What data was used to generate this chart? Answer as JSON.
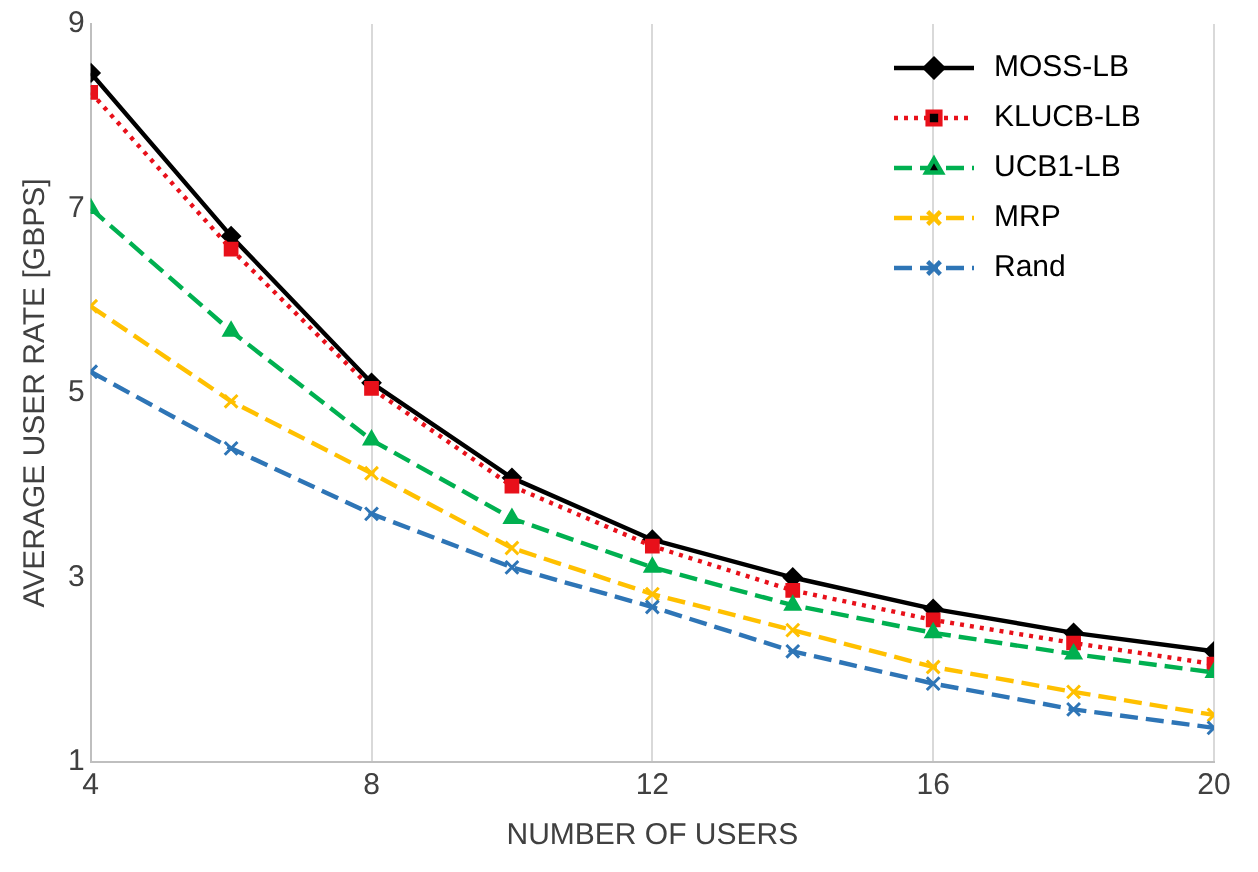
{
  "chart_data": {
    "type": "line",
    "xlabel": "NUMBER OF USERS",
    "ylabel": "AVERAGE USER RATE [GBPS]",
    "x": [
      4,
      6,
      8,
      10,
      12,
      14,
      16,
      18,
      20
    ],
    "xlim": [
      4,
      20
    ],
    "xticks": [
      4,
      8,
      12,
      16,
      20
    ],
    "ylim": [
      1,
      9
    ],
    "yticks": [
      1,
      3,
      5,
      7,
      9
    ],
    "grid": "x",
    "legend": "top right",
    "series": [
      {
        "name": "MOSS-LB",
        "color": "#000000",
        "marker": "diamond",
        "line_style": "solid",
        "values": [
          8.47,
          6.7,
          5.11,
          4.08,
          3.41,
          3.0,
          2.66,
          2.4,
          2.2
        ]
      },
      {
        "name": "KLUCB-LB",
        "color": "#e8101a",
        "marker": "square",
        "line_style": "dotted",
        "values": [
          8.26,
          6.56,
          5.05,
          3.99,
          3.34,
          2.86,
          2.54,
          2.29,
          2.06
        ]
      },
      {
        "name": "UCB1-LB",
        "color": "#00b050",
        "marker": "triangle",
        "line_style": "dashed",
        "values": [
          7.0,
          5.67,
          4.49,
          3.64,
          3.11,
          2.7,
          2.4,
          2.17,
          1.97
        ]
      },
      {
        "name": "MRP",
        "color": "#ffc000",
        "marker": "cross",
        "line_style": "dashed",
        "values": [
          5.94,
          4.91,
          4.13,
          3.32,
          2.82,
          2.43,
          2.03,
          1.76,
          1.51
        ]
      },
      {
        "name": "Rand",
        "color": "#2e75b6",
        "marker": "cross",
        "line_style": "dashed",
        "values": [
          5.23,
          4.4,
          3.69,
          3.11,
          2.68,
          2.2,
          1.85,
          1.57,
          1.37
        ]
      }
    ]
  }
}
